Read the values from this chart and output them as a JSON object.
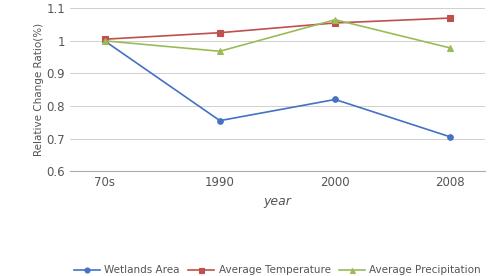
{
  "x_labels": [
    "70s",
    "1990",
    "2000",
    "2008"
  ],
  "x_positions": [
    0,
    1,
    2,
    3
  ],
  "series": [
    {
      "label": "Wetlands Area",
      "values": [
        1.0,
        0.755,
        0.82,
        0.705
      ],
      "color": "#4472C4",
      "marker": "o",
      "marker_facecolor": "#4472C4"
    },
    {
      "label": "Average Temperature",
      "values": [
        1.005,
        1.025,
        1.055,
        1.07
      ],
      "color": "#C0504D",
      "marker": "s",
      "marker_facecolor": "#C0504D"
    },
    {
      "label": "Average Precipitation",
      "values": [
        1.0,
        0.968,
        1.065,
        0.978
      ],
      "color": "#9BBB59",
      "marker": "^",
      "marker_facecolor": "#9BBB59"
    }
  ],
  "ylabel": "Relative Change Ratio(%)",
  "xlabel": "year",
  "ylim": [
    0.6,
    1.1
  ],
  "yticks": [
    0.6,
    0.7,
    0.8,
    0.9,
    1.0,
    1.1
  ],
  "ytick_labels": [
    "0.6",
    "0.7",
    "0.8",
    "0.9",
    "1",
    "1.1"
  ],
  "background_color": "#ffffff",
  "grid_color": "#d0d0d0",
  "font_color": "#555555"
}
